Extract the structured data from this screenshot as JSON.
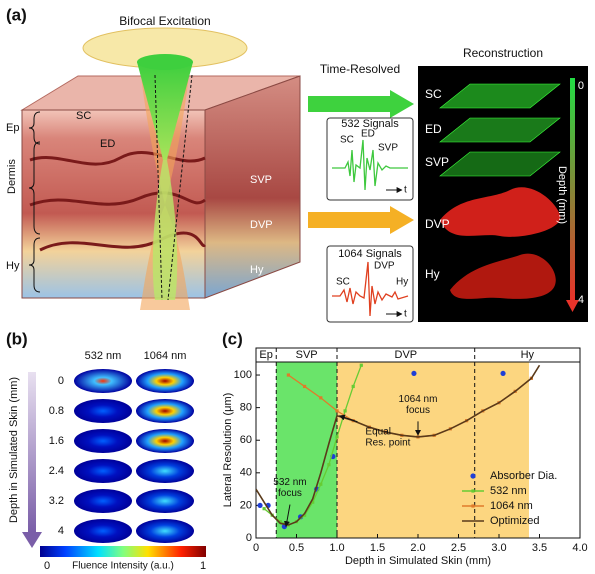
{
  "panel_a": {
    "label": "(a)",
    "title": "Bifocal Excitation",
    "time_resolved": "Time-Resolved",
    "reconstruction": "Reconstruction",
    "skin_labels": {
      "sc": "SC",
      "ed": "ED",
      "svp": "SVP",
      "dvp": "DVP",
      "hy": "Hy"
    },
    "brackets": [
      "Ep",
      "Dermis",
      "Hy"
    ],
    "signal_532": {
      "title": "532 Signals",
      "peaks": [
        "SC",
        "ED",
        "SVP"
      ],
      "axis": "t"
    },
    "signal_1064": {
      "title": "1064 Signals",
      "peaks": [
        "SC",
        "DVP",
        "Hy"
      ],
      "axis": "t"
    },
    "recon_layers": [
      "SC",
      "ED",
      "SVP",
      "DVP",
      "Hy"
    ],
    "depth_bar": {
      "label": "Depth (mm)",
      "top": "0",
      "bottom": "4"
    }
  },
  "panel_b": {
    "label": "(b)",
    "columns": [
      "532 nm",
      "1064 nm"
    ],
    "depths": [
      "0",
      "0.8",
      "1.6",
      "2.4",
      "3.2",
      "4"
    ],
    "axis_label": "Depth in Simulated Skin (mm)",
    "colorbar": {
      "label": "Fluence Intensity (a.u.)",
      "min": "0",
      "max": "1"
    }
  },
  "chart_data": {
    "type": "line",
    "panel_label": "(c)",
    "x_label": "Depth in Simulated Skin (mm)",
    "y_label": "Lateral Resolution (μm)",
    "xlim": [
      0,
      4
    ],
    "xticks": [
      0,
      0.5,
      {
        "value": 1,
        "label": "1.0"
      },
      1.5,
      {
        "value": 2,
        "label": "2.0"
      },
      2.5,
      {
        "value": 3,
        "label": "3.0"
      },
      3.5,
      {
        "value": 4,
        "label": "4.0"
      }
    ],
    "ylim": [
      0,
      108
    ],
    "yticks": [
      0,
      20,
      40,
      60,
      80,
      100
    ],
    "layers": [
      {
        "label": "Ep",
        "range": [
          0,
          0.25
        ]
      },
      {
        "label": "SVP",
        "range": [
          0.25,
          1
        ]
      },
      {
        "label": "DVP",
        "range": [
          1,
          2.7
        ]
      },
      {
        "label": "Hy",
        "range": [
          2.7,
          4
        ]
      }
    ],
    "regions": [
      {
        "xlim": [
          0.25,
          1
        ],
        "color": "#6ae46a"
      },
      {
        "xlim": [
          1,
          3.37
        ],
        "color": "#fcd680"
      }
    ],
    "series": [
      {
        "name": "Absorber Dia.",
        "color": "#1f3fd6",
        "style": "dots",
        "x": [
          0.05,
          0.15,
          0.35,
          0.55,
          0.75,
          0.95,
          1.95,
          3.05
        ],
        "values": [
          20,
          20,
          7,
          13,
          30,
          50,
          101,
          101
        ]
      },
      {
        "name": "532 nm",
        "color": "#66cc33",
        "style": "line-markers",
        "x": [
          0.1,
          0.2,
          0.3,
          0.4,
          0.5,
          0.6,
          0.7,
          0.8,
          0.9,
          1.0,
          1.1,
          1.2,
          1.3
        ],
        "values": [
          18,
          14,
          10,
          8,
          10,
          14,
          22,
          33,
          45,
          62,
          78,
          93,
          106
        ]
      },
      {
        "name": "1064 nm",
        "color": "#e07b2a",
        "style": "line-markers",
        "x": [
          0.4,
          0.6,
          0.8,
          1.0,
          1.2,
          1.4,
          1.6,
          1.8,
          2.0,
          2.2,
          2.4,
          2.6,
          2.8,
          3.0,
          3.2,
          3.4
        ],
        "values": [
          100,
          93,
          86,
          78,
          72,
          68,
          65,
          63,
          62,
          63,
          67,
          72,
          78,
          83,
          90,
          98
        ]
      },
      {
        "name": "Optimized",
        "color": "#5a3a1a",
        "style": "line",
        "x": [
          0,
          0.1,
          0.2,
          0.3,
          0.4,
          0.5,
          0.6,
          0.7,
          0.8,
          0.9,
          1.0,
          1.2,
          1.4,
          1.6,
          1.8,
          2.0,
          2.2,
          2.4,
          2.6,
          2.8,
          3.0,
          3.2,
          3.4,
          3.5
        ],
        "values": [
          30,
          22,
          14,
          9,
          8,
          10,
          15,
          24,
          40,
          58,
          75,
          72,
          68,
          65,
          63,
          62,
          63,
          67,
          72,
          78,
          83,
          90,
          98,
          106
        ]
      }
    ],
    "annotations": [
      {
        "text": [
          "532 nm",
          "focus"
        ],
        "xy": [
          0.37,
          7
        ]
      },
      {
        "text": [
          "Equal",
          "Res. point"
        ],
        "xy": [
          1.03,
          75
        ]
      },
      {
        "text": [
          "1064 nm",
          "focus"
        ],
        "xy": [
          2.0,
          63
        ]
      }
    ],
    "legend": "lower right"
  }
}
